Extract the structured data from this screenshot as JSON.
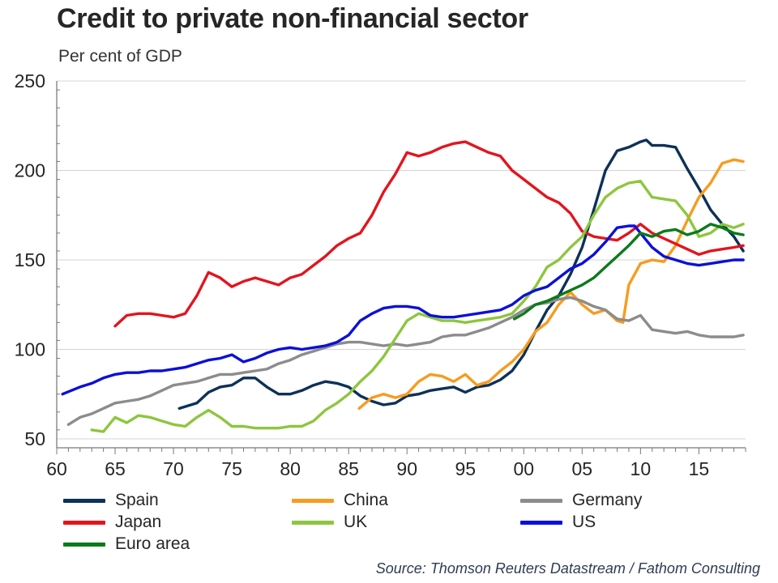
{
  "chart_data": {
    "type": "line",
    "title": "Credit to private non-financial sector",
    "subtitle": "Per cent of GDP",
    "ylabel": "Per cent of GDP",
    "xlabel": "",
    "xlim": [
      1960,
      2019
    ],
    "ylim": [
      50,
      250
    ],
    "y_ticks": [
      50,
      100,
      150,
      200,
      250
    ],
    "x_ticks": [
      1960,
      1965,
      1970,
      1975,
      1980,
      1985,
      1990,
      1995,
      2000,
      2005,
      2010,
      2015
    ],
    "x_tick_labels": [
      "60",
      "65",
      "70",
      "75",
      "80",
      "85",
      "90",
      "95",
      "00",
      "05",
      "10",
      "15"
    ],
    "grid": "horizontal",
    "legend_position": "bottom",
    "source": "Source: Thomson Reuters Datastream / Fathom Consulting",
    "series": [
      {
        "name": "Spain",
        "color": "#0d3158",
        "x": [
          1970.5,
          1972,
          1973,
          1974,
          1975,
          1976,
          1977,
          1978,
          1979,
          1980,
          1981,
          1982,
          1983,
          1984,
          1985,
          1986,
          1987,
          1988,
          1989,
          1990,
          1991,
          1992,
          1993,
          1994,
          1995,
          1996,
          1997,
          1998,
          1999,
          2000,
          2001,
          2002,
          2003,
          2004,
          2005,
          2006,
          2007,
          2008,
          2009,
          2010,
          2010.5,
          2011,
          2012,
          2013,
          2014,
          2015,
          2016,
          2017,
          2018,
          2018.8
        ],
        "y": [
          67,
          70,
          76,
          79,
          80,
          84,
          84,
          79,
          75,
          75,
          77,
          80,
          82,
          81,
          79,
          74,
          71,
          69,
          70,
          74,
          75,
          77,
          78,
          79,
          76,
          79,
          80,
          83,
          88,
          97,
          110,
          122,
          130,
          142,
          157,
          178,
          200,
          211,
          213,
          216,
          217,
          214,
          214,
          213,
          201,
          190,
          178,
          170,
          163,
          155
        ]
      },
      {
        "name": "China",
        "color": "#f79b1f",
        "x": [
          1985.9,
          1987,
          1988,
          1989,
          1990,
          1991,
          1992,
          1993,
          1994,
          1995,
          1996,
          1997,
          1998,
          1999,
          2000,
          2001,
          2002,
          2003,
          2004,
          2005,
          2006,
          2007,
          2008,
          2008.5,
          2009,
          2010,
          2011,
          2012,
          2013,
          2014,
          2015,
          2016,
          2017,
          2018,
          2018.8
        ],
        "y": [
          67,
          73,
          75,
          73,
          75,
          82,
          86,
          85,
          82,
          86,
          80,
          82,
          88,
          93,
          100,
          110,
          115,
          125,
          132,
          125,
          120,
          122,
          116,
          115,
          136,
          148,
          150,
          149,
          158,
          172,
          185,
          193,
          204,
          206,
          205
        ]
      },
      {
        "name": "Germany",
        "color": "#8c8c8c",
        "x": [
          1961,
          1962,
          1963,
          1964,
          1965,
          1966,
          1967,
          1968,
          1969,
          1970,
          1971,
          1972,
          1973,
          1974,
          1975,
          1976,
          1977,
          1978,
          1979,
          1980,
          1981,
          1982,
          1983,
          1984,
          1985,
          1986,
          1987,
          1988,
          1989,
          1990,
          1991,
          1992,
          1993,
          1994,
          1995,
          1996,
          1997,
          1998,
          1999,
          2000,
          2001,
          2002,
          2003,
          2004,
          2005,
          2006,
          2007,
          2008,
          2009,
          2010,
          2011,
          2012,
          2013,
          2014,
          2015,
          2016,
          2017,
          2018,
          2018.8
        ],
        "y": [
          58,
          62,
          64,
          67,
          70,
          71,
          72,
          74,
          77,
          80,
          81,
          82,
          84,
          86,
          86,
          87,
          88,
          89,
          92,
          94,
          97,
          99,
          101,
          103,
          104,
          104,
          103,
          102,
          103,
          102,
          103,
          104,
          107,
          108,
          108,
          110,
          112,
          115,
          118,
          122,
          125,
          126,
          128,
          129,
          127,
          124,
          122,
          117,
          116,
          119,
          111,
          110,
          109,
          110,
          108,
          107,
          107,
          107,
          108
        ]
      },
      {
        "name": "Japan",
        "color": "#e3141e",
        "x": [
          1965,
          1966,
          1967,
          1968,
          1969,
          1970,
          1971,
          1972,
          1973,
          1974,
          1975,
          1976,
          1977,
          1978,
          1979,
          1980,
          1981,
          1982,
          1983,
          1984,
          1985,
          1986,
          1987,
          1988,
          1989,
          1990,
          1991,
          1992,
          1993,
          1994,
          1995,
          1996,
          1997,
          1998,
          1999,
          2000,
          2001,
          2002,
          2003,
          2004,
          2005,
          2006,
          2007,
          2008,
          2009,
          2010,
          2011,
          2012,
          2013,
          2014,
          2015,
          2016,
          2017,
          2018,
          2018.8
        ],
        "y": [
          113,
          119,
          120,
          120,
          119,
          118,
          120,
          130,
          143,
          140,
          135,
          138,
          140,
          138,
          136,
          140,
          142,
          147,
          152,
          158,
          162,
          165,
          175,
          188,
          198,
          210,
          208,
          210,
          213,
          215,
          216,
          213,
          210,
          208,
          200,
          195,
          190,
          185,
          182,
          176,
          166,
          163,
          162,
          161,
          165,
          170,
          165,
          162,
          159,
          156,
          153,
          155,
          156,
          157,
          158
        ]
      },
      {
        "name": "UK",
        "color": "#8dc63f",
        "x": [
          1963,
          1964,
          1965,
          1966,
          1967,
          1968,
          1969,
          1970,
          1971,
          1972,
          1973,
          1974,
          1975,
          1976,
          1977,
          1978,
          1979,
          1980,
          1981,
          1982,
          1983,
          1984,
          1985,
          1986,
          1987,
          1988,
          1989,
          1990,
          1991,
          1992,
          1993,
          1994,
          1995,
          1996,
          1997,
          1998,
          1999,
          2000,
          2001,
          2002,
          2003,
          2004,
          2005,
          2006,
          2007,
          2008,
          2009,
          2010,
          2011,
          2012,
          2013,
          2014,
          2015,
          2016,
          2017,
          2018,
          2018.8
        ],
        "y": [
          55,
          54,
          62,
          59,
          63,
          62,
          60,
          58,
          57,
          62,
          66,
          62,
          57,
          57,
          56,
          56,
          56,
          57,
          57,
          60,
          66,
          70,
          75,
          82,
          88,
          96,
          106,
          116,
          120,
          118,
          116,
          116,
          115,
          116,
          117,
          118,
          120,
          127,
          135,
          146,
          150,
          157,
          163,
          175,
          185,
          190,
          193,
          194,
          185,
          184,
          183,
          175,
          163,
          165,
          170,
          168,
          170
        ]
      },
      {
        "name": "US",
        "color": "#0b10d8",
        "x": [
          1960.5,
          1962,
          1963,
          1964,
          1965,
          1966,
          1967,
          1968,
          1969,
          1970,
          1971,
          1972,
          1973,
          1974,
          1975,
          1976,
          1977,
          1978,
          1979,
          1980,
          1981,
          1982,
          1983,
          1984,
          1985,
          1986,
          1987,
          1988,
          1989,
          1990,
          1991,
          1992,
          1993,
          1994,
          1995,
          1996,
          1997,
          1998,
          1999,
          2000,
          2001,
          2002,
          2003,
          2004,
          2005,
          2006,
          2007,
          2008,
          2009,
          2009.5,
          2010,
          2011,
          2012,
          2013,
          2014,
          2015,
          2016,
          2017,
          2018,
          2018.8
        ],
        "y": [
          75,
          79,
          81,
          84,
          86,
          87,
          87,
          88,
          88,
          89,
          90,
          92,
          94,
          95,
          97,
          93,
          95,
          98,
          100,
          101,
          100,
          101,
          102,
          104,
          108,
          116,
          120,
          123,
          124,
          124,
          123,
          119,
          118,
          118,
          119,
          120,
          121,
          122,
          125,
          130,
          133,
          135,
          140,
          145,
          148,
          153,
          160,
          168,
          169,
          169,
          165,
          157,
          152,
          150,
          148,
          147,
          148,
          149,
          150,
          150
        ]
      },
      {
        "name": "Euro area",
        "color": "#0b7a1a",
        "x": [
          1999.2,
          2000,
          2001,
          2002,
          2003,
          2004,
          2005,
          2006,
          2007,
          2008,
          2009,
          2010,
          2011,
          2012,
          2013,
          2014,
          2015,
          2016,
          2017,
          2018,
          2018.8
        ],
        "y": [
          117,
          120,
          125,
          127,
          130,
          133,
          136,
          140,
          146,
          152,
          158,
          165,
          163,
          166,
          167,
          164,
          166,
          170,
          168,
          165,
          164
        ]
      }
    ]
  }
}
